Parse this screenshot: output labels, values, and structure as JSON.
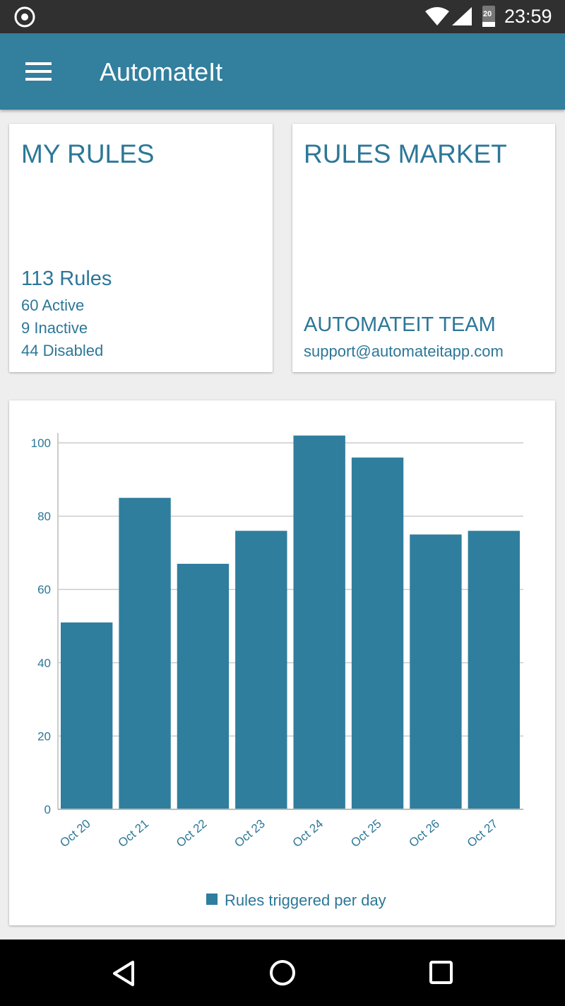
{
  "status_bar": {
    "time": "23:59",
    "battery": "20",
    "icons": [
      "record-icon",
      "wifi-icon",
      "signal-icon",
      "battery-icon"
    ]
  },
  "toolbar": {
    "title": "AutomateIt",
    "menu_icon": "hamburger-menu-icon"
  },
  "my_rules": {
    "title": "MY RULES",
    "count": "113 Rules",
    "active": "60 Active",
    "inactive": "9 Inactive",
    "disabled": "44 Disabled"
  },
  "rules_market": {
    "title": "RULES MARKET",
    "team": "AUTOMATEIT TEAM",
    "email": "support@automateitapp.com"
  },
  "colors": {
    "accent": "#327f9e",
    "bar": "#2f7e9d",
    "text": "#2c7798"
  },
  "chart_data": {
    "type": "bar",
    "categories": [
      "Oct 20",
      "Oct 21",
      "Oct 22",
      "Oct 23",
      "Oct 24",
      "Oct 25",
      "Oct 26",
      "Oct 27"
    ],
    "values": [
      51,
      85,
      67,
      76,
      102,
      96,
      75,
      76
    ],
    "yticks": [
      "0",
      "20",
      "40",
      "60",
      "80",
      "100"
    ],
    "ylim": [
      0,
      102
    ],
    "legend": "Rules triggered per day",
    "legend_position": "bottom-center",
    "grid": true
  },
  "nav_bar": {
    "icons": [
      "back-icon",
      "home-icon",
      "recents-icon"
    ]
  }
}
